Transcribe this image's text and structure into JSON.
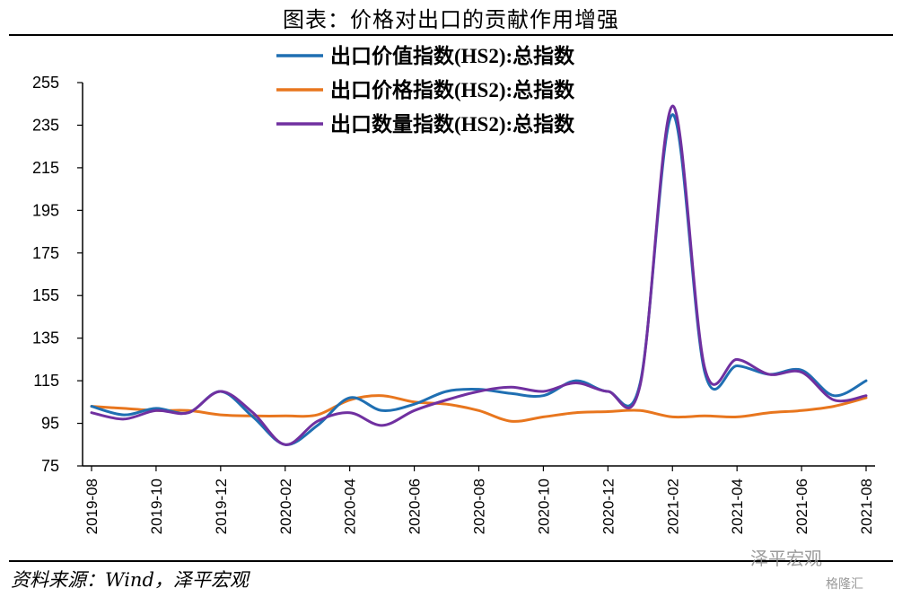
{
  "header": {
    "title": "图表：价格对出口的贡献作用增强"
  },
  "footer": {
    "source": "资料来源：Wind，泽平宏观"
  },
  "watermark": {
    "text": "泽平宏观",
    "badge": "格隆汇"
  },
  "chart_data": {
    "type": "line",
    "title": "图表：价格对出口的贡献作用增强",
    "xlabel": "",
    "ylabel": "",
    "ylim": [
      75,
      255
    ],
    "yticks": [
      75,
      95,
      115,
      135,
      155,
      175,
      195,
      215,
      235,
      255
    ],
    "grid": false,
    "legend_position": "top",
    "x": [
      "2019-08",
      "2019-09",
      "2019-10",
      "2019-11",
      "2019-12",
      "2020-01",
      "2020-02",
      "2020-03",
      "2020-04",
      "2020-05",
      "2020-06",
      "2020-07",
      "2020-08",
      "2020-09",
      "2020-10",
      "2020-11",
      "2020-12",
      "2021-01",
      "2021-02",
      "2021-03",
      "2021-04",
      "2021-05",
      "2021-06",
      "2021-07",
      "2021-08"
    ],
    "xtick_labels": [
      "2019-08",
      "2019-10",
      "2019-12",
      "2020-02",
      "2020-04",
      "2020-06",
      "2020-08",
      "2020-10",
      "2020-12",
      "2021-02",
      "2021-04",
      "2021-06",
      "2021-08"
    ],
    "series": [
      {
        "name": "出口价值指数(HS2):总指数",
        "color": "#1f6fb2",
        "values": [
          103,
          99,
          102,
          100,
          110,
          98,
          85,
          94,
          107,
          101,
          104,
          110,
          111,
          109,
          108,
          115,
          110,
          114,
          240,
          119,
          122,
          118,
          120,
          108,
          115
        ]
      },
      {
        "name": "出口价格指数(HS2):总指数",
        "color": "#e8761e",
        "values": [
          103,
          102,
          101,
          101,
          99,
          98.5,
          98.5,
          99,
          106,
          108,
          105,
          104,
          101,
          96,
          98,
          100,
          100.5,
          101,
          98,
          98.5,
          98,
          100,
          101,
          103,
          107
        ]
      },
      {
        "name": "出口数量指数(HS2):总指数",
        "color": "#7030a0",
        "values": [
          100,
          97,
          101,
          100,
          110,
          100,
          85,
          96,
          100,
          94,
          101,
          106,
          110,
          112,
          110,
          114,
          110,
          113,
          244,
          121,
          125,
          118,
          119,
          106,
          108
        ]
      }
    ]
  }
}
